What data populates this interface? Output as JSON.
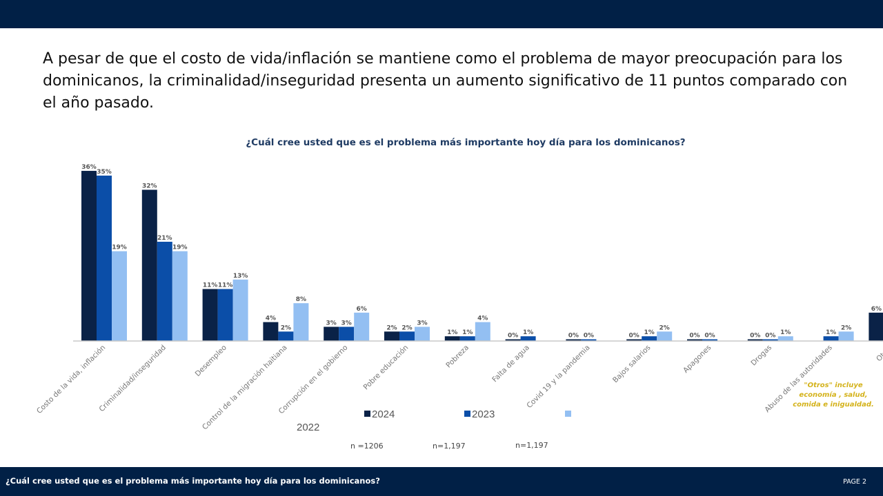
{
  "headline": "A pesar de que el costo de vida/inflación se mantiene como el problema de mayor preocupación para los dominicanos, la criminalidad/inseguridad presenta un aumento significativo de 11 puntos comparado con el año pasado.",
  "footer": {
    "title": "¿Cuál cree usted que es el problema más importante hoy día para los dominicanos?",
    "page": "PAGE  2"
  },
  "sample_sizes": [
    "n =1206",
    "n=1,197",
    "n=1,197"
  ],
  "note": "\"Otros\" incluye economía , salud, comida e inigualdad.",
  "colors": {
    "header_bg": "#012046",
    "series_2024": "#0a2247",
    "series_2023": "#0b4ea8",
    "series_2022": "#93bff2",
    "note": "#d4b21a"
  },
  "chart_data": {
    "type": "bar",
    "title": "¿Cuál cree usted que es el problema más importante hoy día para los dominicanos?",
    "xlabel": "",
    "ylabel": "",
    "ylim": [
      0,
      36
    ],
    "grid": false,
    "legend_position": "bottom",
    "categories": [
      "Costo de la vida, inflación",
      "Criminalidad/inseguridad",
      "Desempleo",
      "Control de la migración haitiana",
      "Corrupción en el gobierno",
      "Pobre educación",
      "Pobreza",
      "Falta de agua",
      "Covid 19 y la pandemia",
      "Bajos salarios",
      "Apagones",
      "Drogas",
      "Abuso de las autoridades",
      "Otros"
    ],
    "series": [
      {
        "name": "2024",
        "values": [
          36,
          32,
          11,
          4,
          3,
          2,
          1,
          0,
          0,
          0,
          0,
          0,
          null,
          6
        ],
        "labels": [
          "36%",
          "32%",
          "11%",
          "4%",
          "3%",
          "2%",
          "1%",
          "0%",
          "0%",
          "0%",
          "0%",
          "0%",
          "",
          "6%"
        ]
      },
      {
        "name": "2023",
        "values": [
          35,
          21,
          11,
          2,
          3,
          2,
          1,
          1,
          0,
          1,
          0,
          0,
          1,
          null
        ],
        "labels": [
          "35%",
          "21%",
          "11%",
          "2%",
          "3%",
          "2%",
          "1%",
          "1%",
          "0%",
          "1%",
          "0%",
          "0%",
          "1%",
          ""
        ]
      },
      {
        "name": "2022",
        "values": [
          19,
          19,
          13,
          8,
          6,
          3,
          4,
          null,
          null,
          2,
          null,
          1,
          2,
          null
        ],
        "labels": [
          "19%",
          "19%",
          "13%",
          "8%",
          "6%",
          "3%",
          "4%",
          "",
          "",
          "2%",
          "",
          "1%",
          "2%",
          ""
        ]
      }
    ],
    "legend": [
      {
        "label": "2024"
      },
      {
        "label": "2023"
      },
      {
        "label": ""
      }
    ],
    "extra_text": "2022"
  }
}
